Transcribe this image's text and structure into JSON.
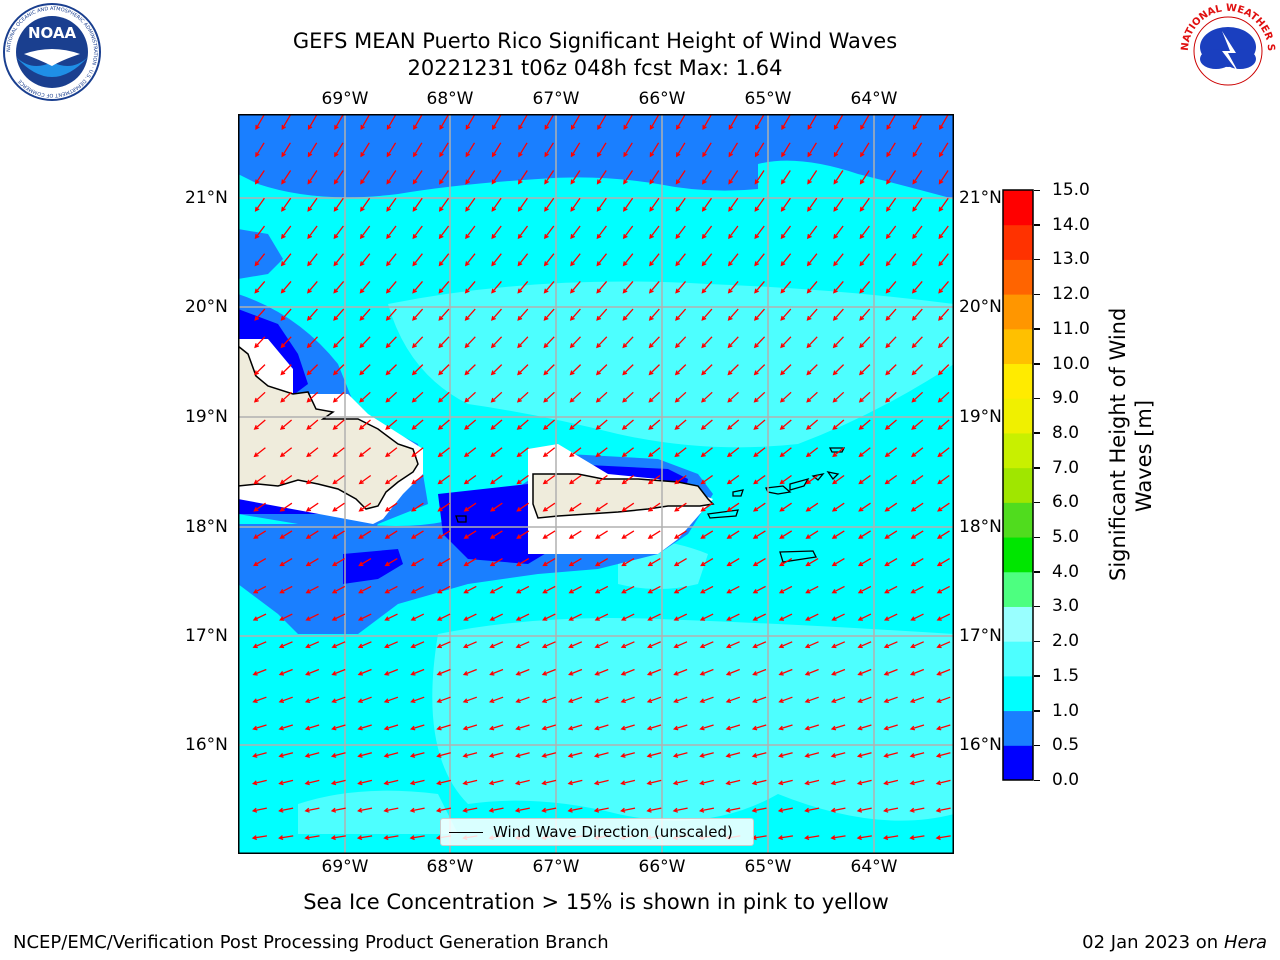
{
  "title": {
    "line1": "GEFS MEAN Puerto Rico Significant Height of Wind Waves",
    "line2": "20221231 t06z 048h fcst   Max: 1.64"
  },
  "map": {
    "lon_labels": [
      "69°W",
      "68°W",
      "67°W",
      "66°W",
      "65°W",
      "64°W"
    ],
    "lat_labels": [
      "21°N",
      "20°N",
      "19°N",
      "18°N",
      "17°N",
      "16°N"
    ],
    "lon_range": [
      -70.0,
      -63.25
    ],
    "lat_range": [
      15.0,
      21.75
    ],
    "arrow_color": "#ff0000",
    "wind_direction_summary": "toward southwest (from northeast)",
    "legend_label": "Wind Wave Direction (unscaled)"
  },
  "colorbar": {
    "label": "Significant Height of Wind\nWaves [m]",
    "label_line1": "Significant Height of Wind",
    "label_line2": "Waves [m]",
    "ticks": [
      "0.0",
      "0.5",
      "1.0",
      "1.5",
      "2.0",
      "3.0",
      "4.0",
      "5.0",
      "6.0",
      "7.0",
      "8.0",
      "9.0",
      "10.0",
      "11.0",
      "12.0",
      "13.0",
      "14.0",
      "15.0"
    ],
    "colors": [
      "#0000ff",
      "#1a7fff",
      "#00ffff",
      "#4dffff",
      "#99ffff",
      "#4dff80",
      "#00e600",
      "#50dc1e",
      "#a0e600",
      "#c8f000",
      "#f0f000",
      "#ffeb00",
      "#ffc000",
      "#ff9600",
      "#ff6400",
      "#ff3200",
      "#ff0000"
    ]
  },
  "subnote": "Sea Ice Concentration > 15% is shown in pink to yellow",
  "footer": {
    "left": "NCEP/EMC/Verification Post Processing Product Generation Branch",
    "right_prefix": "02 Jan 2023 on ",
    "right_host": "Hera"
  },
  "logos": {
    "left": "NOAA",
    "left_ring_text": "NATIONAL OCEANIC AND ATMOSPHERIC ADMINISTRATION · U.S. DEPARTMENT OF COMMERCE",
    "right_ring_text": "NATIONAL WEATHER SERVICE"
  }
}
